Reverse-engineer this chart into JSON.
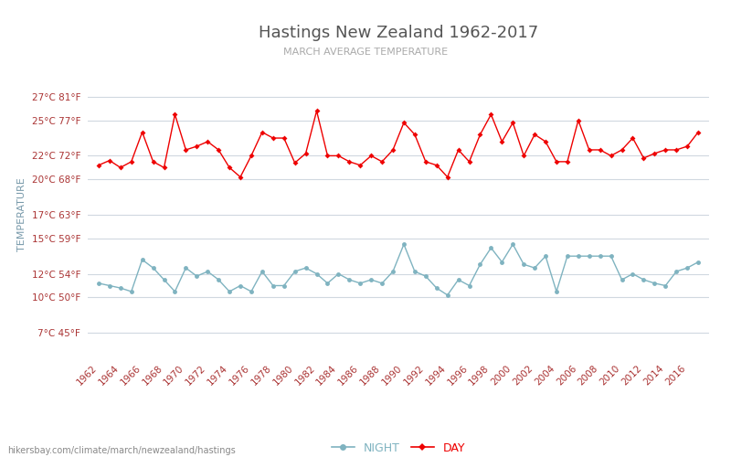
{
  "title": "Hastings New Zealand 1962-2017",
  "subtitle": "MARCH AVERAGE TEMPERATURE",
  "ylabel_label": "TEMPERATURE",
  "footer": "hikersbay.com/climate/march/newzealand/hastings",
  "bg_color": "#ffffff",
  "grid_color": "#d0d8e0",
  "title_color": "#555555",
  "subtitle_color": "#aaaaaa",
  "ylabel_color": "#7799aa",
  "tick_color": "#aa3333",
  "years": [
    1962,
    1963,
    1964,
    1965,
    1966,
    1967,
    1968,
    1969,
    1970,
    1971,
    1972,
    1973,
    1974,
    1975,
    1976,
    1977,
    1978,
    1979,
    1980,
    1981,
    1982,
    1983,
    1984,
    1985,
    1986,
    1987,
    1988,
    1989,
    1990,
    1991,
    1992,
    1993,
    1994,
    1995,
    1996,
    1997,
    1998,
    1999,
    2000,
    2001,
    2002,
    2003,
    2004,
    2005,
    2006,
    2007,
    2008,
    2009,
    2010,
    2011,
    2012,
    2013,
    2014,
    2015,
    2016,
    2017
  ],
  "day_temps": [
    21.2,
    21.6,
    21.0,
    21.5,
    24.0,
    21.5,
    21.0,
    25.5,
    22.5,
    22.8,
    23.2,
    22.5,
    21.0,
    20.2,
    22.0,
    24.0,
    23.5,
    23.5,
    21.4,
    22.2,
    25.8,
    22.0,
    22.0,
    21.5,
    21.2,
    22.0,
    21.5,
    22.5,
    24.8,
    23.8,
    21.5,
    21.2,
    20.2,
    22.5,
    21.5,
    23.8,
    25.5,
    23.2,
    24.8,
    22.0,
    23.8,
    23.2,
    21.5,
    21.5,
    25.0,
    22.5,
    22.5,
    22.0,
    22.5,
    23.5,
    21.8,
    22.2,
    22.5,
    22.5,
    22.8,
    24.0
  ],
  "night_temps": [
    11.2,
    11.0,
    10.8,
    10.5,
    13.2,
    12.5,
    11.5,
    10.5,
    12.5,
    11.8,
    12.2,
    11.5,
    10.5,
    11.0,
    10.5,
    12.2,
    11.0,
    11.0,
    12.2,
    12.5,
    12.0,
    11.2,
    12.0,
    11.5,
    11.2,
    11.5,
    11.2,
    12.2,
    14.5,
    12.2,
    11.8,
    10.8,
    10.2,
    11.5,
    11.0,
    12.8,
    14.2,
    13.0,
    14.5,
    12.8,
    12.5,
    13.5,
    10.5,
    13.5,
    13.5,
    13.5,
    13.5,
    13.5,
    11.5,
    12.0,
    11.5,
    11.2,
    11.0,
    12.2,
    12.5,
    13.0
  ],
  "yticks_c": [
    7,
    10,
    12,
    15,
    17,
    20,
    22,
    25,
    27
  ],
  "yticks_f": [
    45,
    50,
    54,
    59,
    63,
    68,
    72,
    77,
    81
  ],
  "ylim": [
    5,
    29
  ],
  "xlim": [
    1961.0,
    2018.0
  ],
  "xtick_years": [
    1962,
    1964,
    1966,
    1968,
    1970,
    1972,
    1974,
    1976,
    1978,
    1980,
    1982,
    1984,
    1986,
    1988,
    1990,
    1992,
    1994,
    1996,
    1998,
    2000,
    2002,
    2004,
    2006,
    2008,
    2010,
    2012,
    2014,
    2016
  ],
  "day_color": "#ee0000",
  "night_color": "#7fb3c0",
  "day_marker": "D",
  "night_marker": "o",
  "marker_size_day": 3,
  "marker_size_night": 3.5,
  "linewidth": 1.0
}
